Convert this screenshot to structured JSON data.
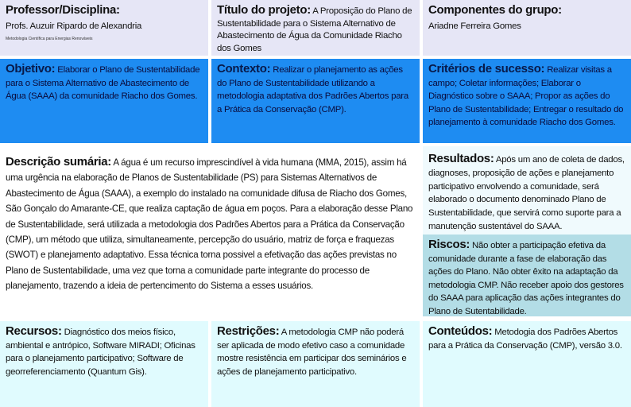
{
  "professor": {
    "heading": "Professor/Disciplina:",
    "name": "Profs. Auzuir Ripardo de Alexandria",
    "course": "Metodologia Científica para Energias Renováveis"
  },
  "titulo": {
    "heading": "Título do projeto:",
    "text": "A Proposição do Plano de Sustentabilidade para o Sistema Alternativo de Abastecimento de Água da Comunidade Riacho dos Gomes"
  },
  "componentes": {
    "heading": "Componentes do grupo:",
    "text": "Ariadne Ferreira Gomes"
  },
  "objetivo": {
    "heading": "Objetivo:",
    "text": "Elaborar o Plano de Sustentabilidade para o Sistema Alternativo de Abastecimento de Água (SAAA) da comunidade Riacho dos Gomes."
  },
  "contexto": {
    "heading": "Contexto:",
    "text": "Realizar o planejamento as ações do Plano de Sustentabilidade utilizando a metodologia adaptativa dos Padrões Abertos para a Prática da Conservação (CMP)."
  },
  "criterios": {
    "heading": "Critérios de sucesso:",
    "text": "Realizar visitas a campo; Coletar informações; Elaborar o Diagnóstico sobre o SAAA; Propor as ações do Plano de Sustentabilidade; Entregar o resultado do planejamento à comunidade Riacho dos Gomes."
  },
  "descricao": {
    "heading": "Descrição sumária:",
    "text": "A água é um recurso imprescindível à vida humana (MMA, 2015), assim há uma urgência na elaboração de Planos de Sustentabilidade (PS) para Sistemas Alternativos de Abastecimento de Água (SAAA), a exemplo do instalado na comunidade difusa de Riacho dos Gomes, São Gonçalo do Amarante-CE, que realiza captação de água em poços. Para a elaboração desse Plano de Sustentabilidade, será utilizada a metodologia dos Padrões Abertos para a Prática da Conservação (CMP), um método que utiliza, simultaneamente, percepção do usuário, matriz de força e fraquezas (SWOT) e planejamento adaptativo. Essa técnica torna possivel a efetivação das ações previstas no Plano de Sustentabilidade, uma vez que torna a comunidade parte integrante do processo de planejamento, trazendo a ideia de pertencimento do Sistema a esses usuários."
  },
  "resultados": {
    "heading": "Resultados:",
    "text": "Após um ano de coleta de dados, diagnoses, proposição de ações e planejamento participativo envolvendo a comunidade, será elaborado o documento denominado Plano de Sustentabilidade, que servirá como suporte para a manutenção sustentável do SAAA."
  },
  "riscos": {
    "heading": "Riscos:",
    "text": "Não obter a participação efetiva da comunidade durante a fase de elaboração das ações do Plano. Não obter êxito na adaptação da metodologia CMP. Não receber apoio dos gestores do SAAA para aplicação das ações integrantes do Plano de Sutentabilidade."
  },
  "recursos": {
    "heading": "Recursos:",
    "text": "Diagnóstico dos meios físico, ambiental e antrópico, Software MIRADI; Oficinas para o planejamento participativo; Software de georreferenciamento (Quantum Gis)."
  },
  "restricoes": {
    "heading": "Restrições:",
    "text": "A metodologia CMP não poderá ser aplicada de modo efetivo caso a comunidade mostre resistência em participar dos seminários e ações de planejamento participativo."
  },
  "conteudos": {
    "heading": "Conteúdos:",
    "text": "Metodogia dos Padrões Abertos para a Prática da Conservação (CMP), versão 3.0."
  },
  "colors": {
    "top": "#e6e6f6",
    "blue": "#1e8cf2",
    "results": "#f0fafd",
    "risks": "#b3dde6",
    "bottom": "#e0fbfe"
  }
}
